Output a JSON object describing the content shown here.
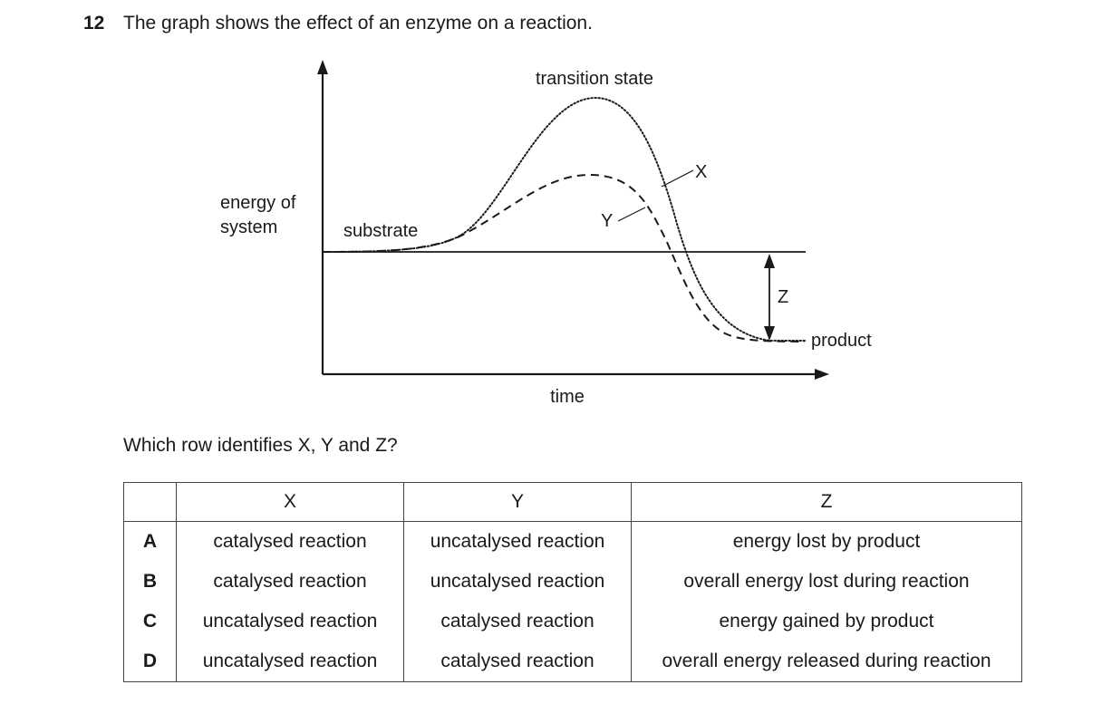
{
  "question": {
    "number": "12",
    "text": "The graph shows the effect of an enzyme on a reaction."
  },
  "diagram": {
    "y_axis_label_line1": "energy of",
    "y_axis_label_line2": "system",
    "x_axis_label": "time",
    "label_transition_state": "transition state",
    "label_substrate": "substrate",
    "label_product": "product",
    "label_x": "X",
    "label_y": "Y",
    "label_z": "Z"
  },
  "prompt": "Which row identifies X, Y and Z?",
  "table": {
    "headers": [
      "",
      "X",
      "Y",
      "Z"
    ],
    "rows": [
      {
        "letter": "A",
        "x": "catalysed reaction",
        "y": "uncatalysed reaction",
        "z": "energy lost by product"
      },
      {
        "letter": "B",
        "x": "catalysed reaction",
        "y": "uncatalysed reaction",
        "z": "overall energy lost during reaction"
      },
      {
        "letter": "C",
        "x": "uncatalysed reaction",
        "y": "catalysed reaction",
        "z": "energy gained by product"
      },
      {
        "letter": "D",
        "x": "uncatalysed reaction",
        "y": "catalysed reaction",
        "z": "overall energy released during reaction"
      }
    ]
  }
}
